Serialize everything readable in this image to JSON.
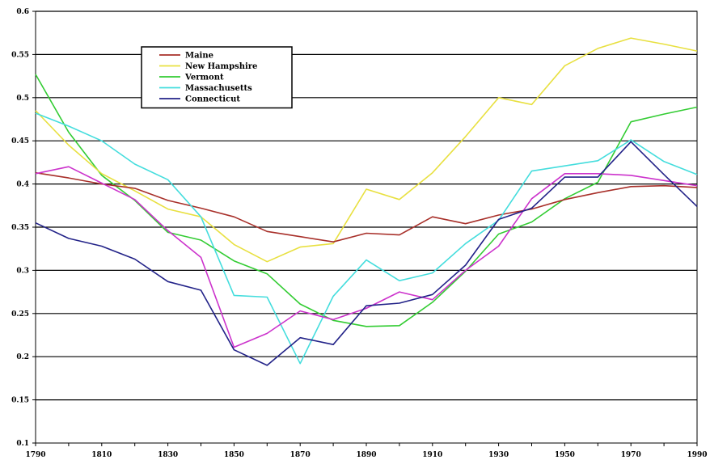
{
  "chart_data": {
    "type": "line",
    "title": "",
    "xlabel": "",
    "ylabel": "",
    "x": [
      1790,
      1800,
      1810,
      1820,
      1830,
      1840,
      1850,
      1860,
      1870,
      1880,
      1890,
      1900,
      1910,
      1920,
      1930,
      1940,
      1950,
      1960,
      1970,
      1980,
      1990
    ],
    "xticks": [
      "1790",
      "1810",
      "1830",
      "1850",
      "1870",
      "1890",
      "1910",
      "1930",
      "1950",
      "1970",
      "1990"
    ],
    "yticks": [
      "0.1",
      "0.15",
      "0.2",
      "0.25",
      "0.3",
      "0.35",
      "0.4",
      "0.45",
      "0.5",
      "0.55",
      "0.6"
    ],
    "ylim": [
      0.1,
      0.6
    ],
    "xlim": [
      1790,
      1990
    ],
    "grid": "horizontal",
    "legend_position": "top-left",
    "series": [
      {
        "name": "Maine",
        "color": "#a8302a",
        "values": [
          0.413,
          0.407,
          0.4,
          0.395,
          0.381,
          0.372,
          0.362,
          0.345,
          0.339,
          0.333,
          0.343,
          0.341,
          0.362,
          0.354,
          0.364,
          0.371,
          0.382,
          0.39,
          0.397,
          0.398,
          0.396
        ]
      },
      {
        "name": "New Hampshire",
        "color": "#e8e040",
        "values": [
          0.485,
          0.445,
          0.412,
          0.392,
          0.371,
          0.362,
          0.33,
          0.31,
          0.327,
          0.331,
          0.394,
          0.382,
          0.413,
          0.455,
          0.5,
          0.492,
          0.537,
          0.557,
          0.569,
          0.562,
          0.554
        ]
      },
      {
        "name": "Vermont",
        "color": "#33cc33",
        "values": [
          0.527,
          0.46,
          0.41,
          0.381,
          0.344,
          0.335,
          0.311,
          0.296,
          0.261,
          0.242,
          0.235,
          0.236,
          0.263,
          0.299,
          0.342,
          0.356,
          0.383,
          0.402,
          0.472,
          0.481,
          0.489
        ]
      },
      {
        "name": "Massachusetts",
        "color": "#44dddd",
        "values": [
          0.482,
          0.467,
          0.45,
          0.423,
          0.405,
          0.362,
          0.271,
          0.269,
          0.192,
          0.27,
          0.312,
          0.288,
          0.297,
          0.331,
          0.358,
          0.415,
          0.421,
          0.427,
          0.451,
          0.426,
          0.411
        ]
      },
      {
        "name": "Connecticut",
        "color": "#222288",
        "values": [
          0.355,
          0.337,
          0.328,
          0.313,
          0.287,
          0.277,
          0.208,
          0.19,
          0.222,
          0.214,
          0.259,
          0.262,
          0.272,
          0.306,
          0.359,
          0.372,
          0.408,
          0.408,
          0.449,
          0.411,
          0.374
        ]
      },
      {
        "name": "",
        "color": "#cc33cc",
        "values": [
          0.412,
          0.42,
          0.401,
          0.382,
          0.346,
          0.315,
          0.211,
          0.227,
          0.253,
          0.243,
          0.256,
          0.275,
          0.266,
          0.3,
          0.328,
          0.383,
          0.412,
          0.412,
          0.41,
          0.404,
          0.398
        ]
      }
    ]
  }
}
